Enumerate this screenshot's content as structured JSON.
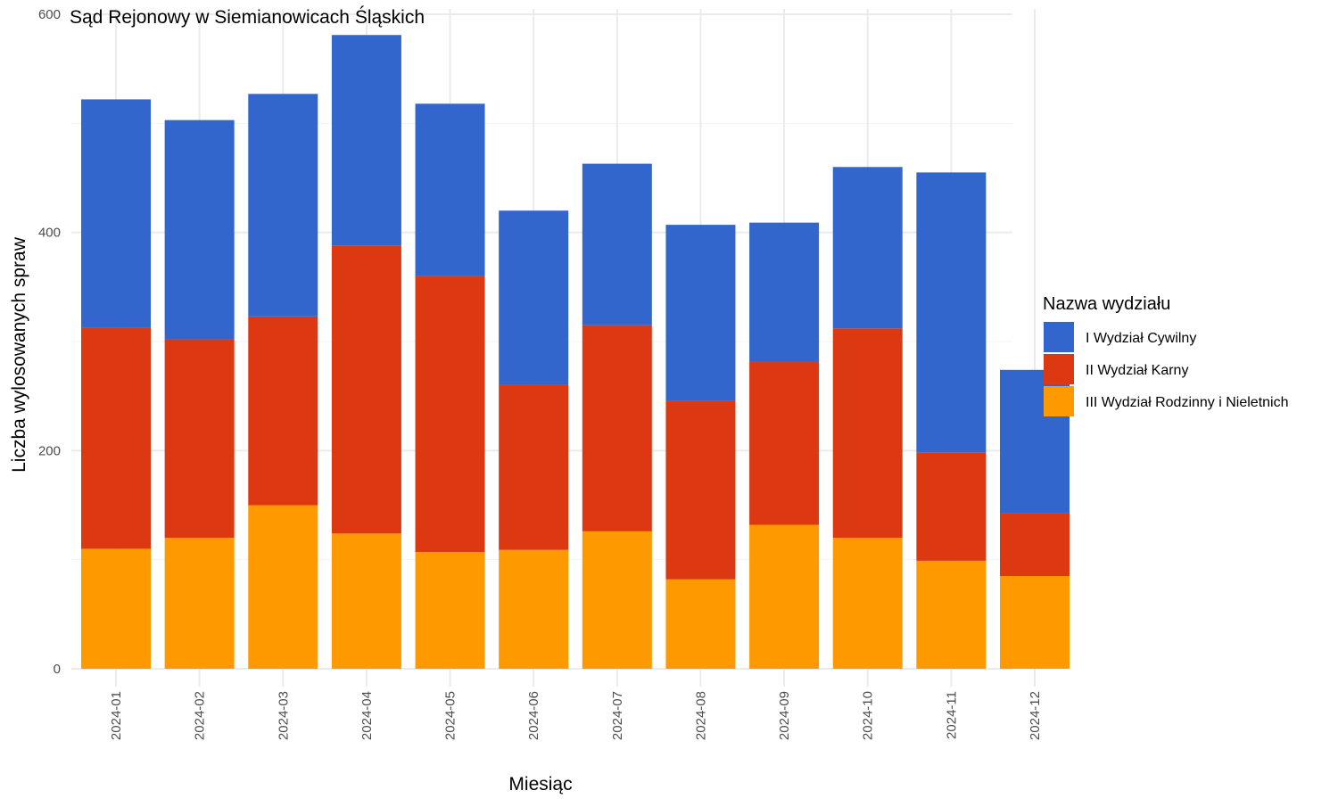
{
  "chart_data": {
    "type": "bar",
    "stacked": true,
    "title": "Sąd Rejonowy w Siemianowicach Śląskich",
    "xlabel": "Miesiąc",
    "ylabel": "Liczba wylosowanych spraw",
    "ylim": [
      0,
      600
    ],
    "yticks": [
      0,
      200,
      400,
      600
    ],
    "grid": true,
    "legend_title": "Nazwa wydziału",
    "legend_position": "right",
    "categories": [
      "2024-01",
      "2024-02",
      "2024-03",
      "2024-04",
      "2024-05",
      "2024-06",
      "2024-07",
      "2024-08",
      "2024-09",
      "2024-10",
      "2024-11",
      "2024-12"
    ],
    "series": [
      {
        "name": "I Wydział Cywilny",
        "color": "#3366cc",
        "values": [
          209,
          201,
          204,
          193,
          158,
          160,
          148,
          161,
          127,
          148,
          257,
          131
        ]
      },
      {
        "name": "II Wydział Karny",
        "color": "#dc3912",
        "values": [
          203,
          182,
          173,
          264,
          253,
          151,
          189,
          164,
          150,
          192,
          99,
          58
        ]
      },
      {
        "name": "III Wydział Rodzinny i Nieletnich",
        "color": "#ff9900",
        "values": [
          110,
          120,
          150,
          124,
          107,
          109,
          126,
          82,
          132,
          120,
          99,
          85
        ]
      }
    ]
  }
}
